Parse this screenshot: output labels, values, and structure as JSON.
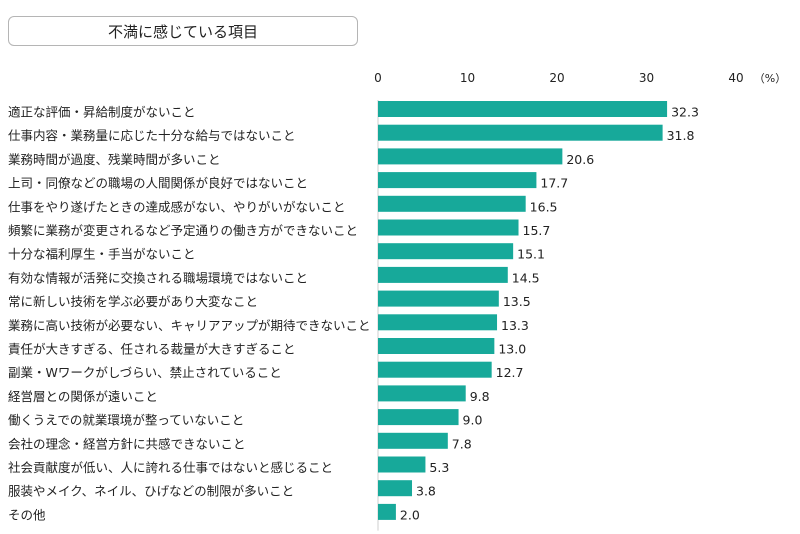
{
  "chart_data": {
    "type": "bar",
    "orientation": "horizontal",
    "title": "不満に感じている項目",
    "unit_label": "（%）",
    "x_ticks": [
      0,
      10,
      20,
      30,
      40
    ],
    "xlim": [
      0,
      40
    ],
    "grid": false,
    "bar_color": "#17a99a",
    "categories": [
      "適正な評価・昇給制度がないこと",
      "仕事内容・業務量に応じた十分な給与ではないこと",
      "業務時間が過度、残業時間が多いこと",
      "上司・同僚などの職場の人間関係が良好ではないこと",
      "仕事をやり遂げたときの達成感がない、やりがいがないこと",
      "頻繁に業務が変更されるなど予定通りの働き方ができないこと",
      "十分な福利厚生・手当がないこと",
      "有効な情報が活発に交換される職場環境ではないこと",
      "常に新しい技術を学ぶ必要があり大変なこと",
      "業務に高い技術が必要ない、キャリアアップが期待できないこと",
      "責任が大きすぎる、任される裁量が大きすぎること",
      "副業・Wワークがしづらい、禁止されていること",
      "経営層との関係が遠いこと",
      "働くうえでの就業環境が整っていないこと",
      "会社の理念・経営方針に共感できないこと",
      "社会貢献度が低い、人に誇れる仕事ではないと感じること",
      "服装やメイク、ネイル、ひげなどの制限が多いこと",
      "その他"
    ],
    "values": [
      32.3,
      31.8,
      20.6,
      17.7,
      16.5,
      15.7,
      15.1,
      14.5,
      13.5,
      13.3,
      13.0,
      12.7,
      9.8,
      9.0,
      7.8,
      5.3,
      3.8,
      2.0
    ],
    "value_labels": [
      "32.3",
      "31.8",
      "20.6",
      "17.7",
      "16.5",
      "15.7",
      "15.1",
      "14.5",
      "13.5",
      "13.3",
      "13.0",
      "12.7",
      "9.8",
      "9.0",
      "7.8",
      "5.3",
      "3.8",
      "2.0"
    ]
  }
}
